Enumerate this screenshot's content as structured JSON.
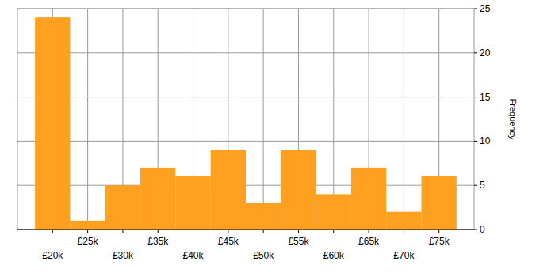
{
  "chart_data": {
    "type": "histogram",
    "bins": [
      17500,
      22500,
      27500,
      32500,
      37500,
      42500,
      47500,
      52500,
      57500,
      62500,
      67500,
      72500,
      77500
    ],
    "values": [
      24,
      1,
      5,
      7,
      6,
      9,
      3,
      9,
      4,
      7,
      2,
      6
    ],
    "color": "#ffa020",
    "xlim": [
      15000,
      80000
    ],
    "xticks": [
      {
        "value": 20000,
        "label": "£20k"
      },
      {
        "value": 25000,
        "label": "£25k"
      },
      {
        "value": 30000,
        "label": "£30k"
      },
      {
        "value": 35000,
        "label": "£35k"
      },
      {
        "value": 40000,
        "label": "£40k"
      },
      {
        "value": 45000,
        "label": "£45k"
      },
      {
        "value": 50000,
        "label": "£50k"
      },
      {
        "value": 55000,
        "label": "£55k"
      },
      {
        "value": 60000,
        "label": "£60k"
      },
      {
        "value": 65000,
        "label": "£65k"
      },
      {
        "value": 70000,
        "label": "£70k"
      },
      {
        "value": 75000,
        "label": "£75k"
      }
    ],
    "ylim": [
      0,
      25
    ],
    "yticks": [
      0,
      5,
      10,
      15,
      20,
      25
    ],
    "ylabel": "Frequency",
    "grid": true
  }
}
